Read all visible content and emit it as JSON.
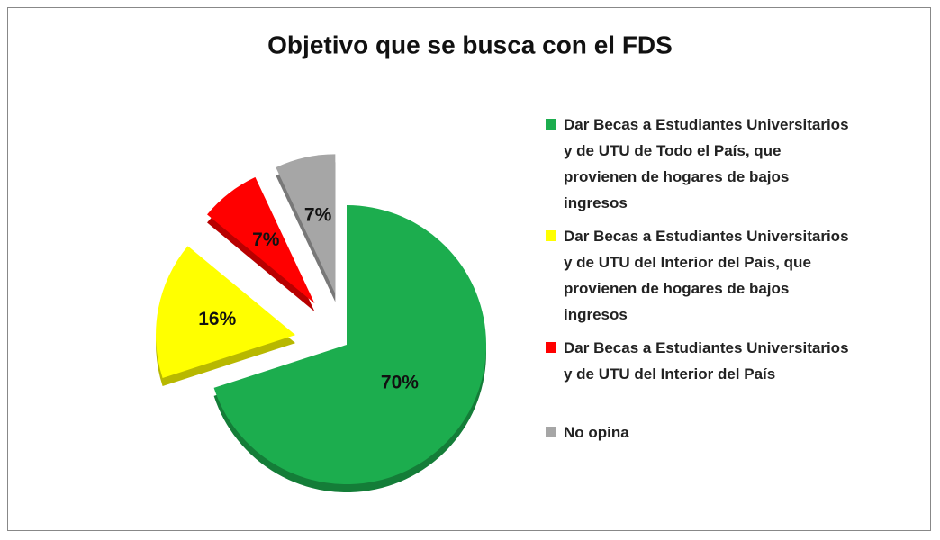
{
  "chart_data": {
    "type": "pie",
    "title": "Objetivo que se busca con el FDS",
    "categories": [
      "Dar Becas a Estudiantes Universitarios y de UTU de Todo el País, que provienen de hogares de bajos ingresos",
      "Dar Becas a Estudiantes Universitarios y de UTU del Interior del País, que provienen de hogares de bajos ingresos",
      "Dar Becas a Estudiantes Universitarios y de UTU del Interior del País",
      "No opina"
    ],
    "values": [
      70,
      16,
      7,
      7
    ],
    "value_labels": [
      "70%",
      "16%",
      "7%",
      "7%"
    ],
    "colors": [
      "#1cad4e",
      "#ffff00",
      "#ff0000",
      "#a6a6a6"
    ],
    "legend": "right"
  }
}
